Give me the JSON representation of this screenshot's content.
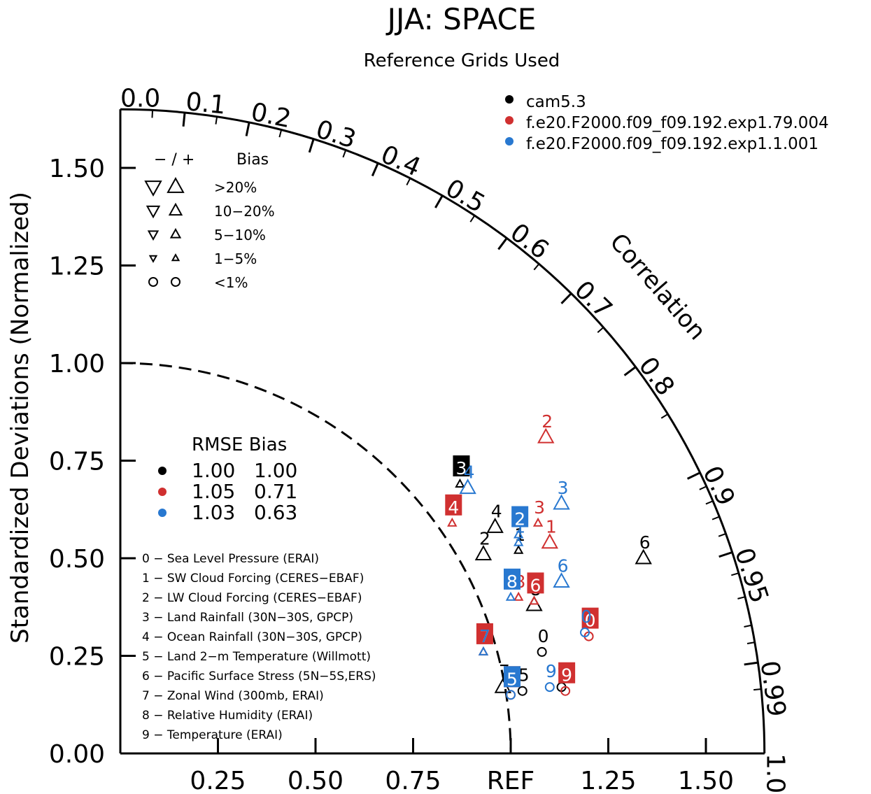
{
  "chart_data": {
    "type": "scatter",
    "subtype": "taylor-diagram",
    "title": "JJA: SPACE",
    "subtitle": "Reference Grids Used",
    "ylabel": "Standardized Deviations (Normalized)",
    "arc_label": "Correlation",
    "ref_label": "REF",
    "max_std": 1.65,
    "y_ticks": [
      "0.00",
      "0.25",
      "0.50",
      "0.75",
      "1.00",
      "1.25",
      "1.50"
    ],
    "y_tick_values": [
      0,
      0.25,
      0.5,
      0.75,
      1.0,
      1.25,
      1.5
    ],
    "x_ticks": [
      "0.25",
      "0.50",
      "0.75",
      "1.25",
      "1.50"
    ],
    "x_tick_values": [
      0.25,
      0.5,
      0.75,
      1.25,
      1.5
    ],
    "corr_labels": [
      "0.0",
      "0.1",
      "0.2",
      "0.3",
      "0.4",
      "0.5",
      "0.6",
      "0.7",
      "0.8",
      "0.9",
      "0.95",
      "0.99",
      "1.0"
    ],
    "corr_values": [
      0.0,
      0.1,
      0.2,
      0.3,
      0.4,
      0.5,
      0.6,
      0.7,
      0.8,
      0.9,
      0.95,
      0.99,
      1.0
    ],
    "legend_position": "top-right",
    "series": [
      {
        "name": "cam5.3",
        "color": "#000000"
      },
      {
        "name": "f.e20.F2000.f09_f09.192.exp1.79.004",
        "color": "#d03030"
      },
      {
        "name": "f.e20.F2000.f09_f09.192.exp1.1.001",
        "color": "#2878d0"
      }
    ],
    "bias_legend": {
      "header_sign": "− / +",
      "header_bias": "Bias",
      "rows": [
        ">20%",
        "10−20%",
        "5−10%",
        "1−5%",
        "<1%"
      ]
    },
    "rmse_table": {
      "header": "RMSE Bias",
      "rows": [
        {
          "rmse": "1.00",
          "bias": "1.00"
        },
        {
          "rmse": "1.05",
          "bias": "0.71"
        },
        {
          "rmse": "1.03",
          "bias": "0.63"
        }
      ]
    },
    "variables": [
      "0 − Sea Level Pressure (ERAI)",
      "1 − SW Cloud Forcing (CERES−EBAF)",
      "2 − LW Cloud Forcing (CERES−EBAF)",
      "3 − Land Rainfall (30N−30S, GPCP)",
      "4 − Ocean Rainfall (30N−30S, GPCP)",
      "5 − Land 2−m Temperature (Willmott)",
      "6 − Pacific Surface Stress (5N−5S,ERS)",
      "7 − Zonal Wind (300mb, ERAI)",
      "8 − Relative Humidity (ERAI)",
      "9 − Temperature (ERAI)"
    ],
    "points": [
      {
        "series": 0,
        "label": "0",
        "x": 1.08,
        "y": 0.26,
        "marker": "circle",
        "boxed": false
      },
      {
        "series": 0,
        "label": "1",
        "x": 1.02,
        "y": 0.52,
        "marker": "up",
        "size": "small",
        "boxed": false
      },
      {
        "series": 0,
        "label": "2",
        "x": 0.93,
        "y": 0.51,
        "marker": "up",
        "size": "large",
        "boxed": false
      },
      {
        "series": 0,
        "label": "3",
        "x": 0.87,
        "y": 0.69,
        "marker": "up",
        "size": "small",
        "boxed": true
      },
      {
        "series": 0,
        "label": "4",
        "x": 0.96,
        "y": 0.58,
        "marker": "up",
        "size": "large",
        "boxed": false
      },
      {
        "series": 0,
        "label": "5",
        "x": 1.03,
        "y": 0.16,
        "marker": "circle",
        "boxed": false
      },
      {
        "series": 0,
        "label": "6",
        "x": 1.34,
        "y": 0.5,
        "marker": "up",
        "size": "large",
        "boxed": false
      },
      {
        "series": 0,
        "label": "7",
        "x": 0.98,
        "y": 0.17,
        "marker": "up",
        "size": "large",
        "boxed": false
      },
      {
        "series": 0,
        "label": "8",
        "x": 1.06,
        "y": 0.38,
        "marker": "up",
        "size": "large",
        "boxed": false
      },
      {
        "series": 0,
        "label": "9",
        "x": 1.13,
        "y": 0.17,
        "marker": "circle",
        "boxed": false
      },
      {
        "series": 1,
        "label": "0",
        "x": 1.2,
        "y": 0.3,
        "marker": "circle",
        "boxed": true
      },
      {
        "series": 1,
        "label": "1",
        "x": 1.1,
        "y": 0.54,
        "marker": "up",
        "size": "large",
        "boxed": false
      },
      {
        "series": 1,
        "label": "2",
        "x": 1.09,
        "y": 0.81,
        "marker": "up",
        "size": "large",
        "boxed": false
      },
      {
        "series": 1,
        "label": "3",
        "x": 1.07,
        "y": 0.59,
        "marker": "up",
        "size": "small",
        "boxed": false
      },
      {
        "series": 1,
        "label": "4",
        "x": 0.85,
        "y": 0.59,
        "marker": "up",
        "size": "small",
        "boxed": true
      },
      {
        "series": 1,
        "label": "5",
        "x": 1.0,
        "y": 0.15,
        "marker": "circle",
        "boxed": true
      },
      {
        "series": 1,
        "label": "6",
        "x": 1.06,
        "y": 0.39,
        "marker": "up",
        "size": "small",
        "boxed": true
      },
      {
        "series": 1,
        "label": "7",
        "x": 0.93,
        "y": 0.26,
        "marker": "up",
        "size": "small",
        "boxed": true
      },
      {
        "series": 1,
        "label": "8",
        "x": 1.02,
        "y": 0.4,
        "marker": "up",
        "size": "small",
        "boxed": false
      },
      {
        "series": 1,
        "label": "9",
        "x": 1.14,
        "y": 0.16,
        "marker": "circle",
        "boxed": true
      },
      {
        "series": 2,
        "label": "0",
        "x": 1.19,
        "y": 0.31,
        "marker": "circle",
        "boxed": false
      },
      {
        "series": 2,
        "label": "1",
        "x": 1.02,
        "y": 0.54,
        "marker": "up",
        "size": "small",
        "boxed": false
      },
      {
        "series": 2,
        "label": "2",
        "x": 1.02,
        "y": 0.56,
        "marker": "up",
        "size": "small",
        "boxed": true
      },
      {
        "series": 2,
        "label": "3",
        "x": 1.13,
        "y": 0.64,
        "marker": "up",
        "size": "large",
        "boxed": false
      },
      {
        "series": 2,
        "label": "4",
        "x": 0.89,
        "y": 0.68,
        "marker": "up",
        "size": "large",
        "boxed": false
      },
      {
        "series": 2,
        "label": "5",
        "x": 1.0,
        "y": 0.15,
        "marker": "circle",
        "boxed": true
      },
      {
        "series": 2,
        "label": "6",
        "x": 1.13,
        "y": 0.44,
        "marker": "up",
        "size": "large",
        "boxed": false
      },
      {
        "series": 2,
        "label": "7",
        "x": 0.93,
        "y": 0.26,
        "marker": "up",
        "size": "small",
        "boxed": false
      },
      {
        "series": 2,
        "label": "8",
        "x": 1.0,
        "y": 0.4,
        "marker": "up",
        "size": "small",
        "boxed": true
      },
      {
        "series": 2,
        "label": "9",
        "x": 1.1,
        "y": 0.17,
        "marker": "circle",
        "boxed": false
      }
    ]
  }
}
